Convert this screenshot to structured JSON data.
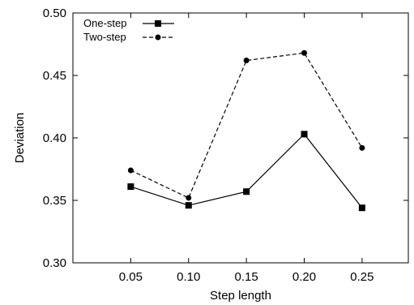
{
  "chart_data": {
    "type": "line",
    "title": "",
    "xlabel": "Step length",
    "ylabel": "Deviation",
    "x": [
      0.05,
      0.1,
      0.15,
      0.2,
      0.25
    ],
    "x_tick_labels": [
      "0.05",
      "0.10",
      "0.15",
      "0.20",
      "0.25"
    ],
    "y_tick_labels": [
      "0.30",
      "0.35",
      "0.40",
      "0.45",
      "0.50"
    ],
    "y_ticks": [
      0.3,
      0.35,
      0.4,
      0.45,
      0.5
    ],
    "xlim": [
      0.0,
      0.29
    ],
    "ylim": [
      0.3,
      0.5
    ],
    "grid": false,
    "legend_position": "top-left",
    "series": [
      {
        "name": "One-step",
        "values": [
          0.361,
          0.346,
          0.357,
          0.403,
          0.344
        ],
        "line_style": "solid",
        "marker": "square",
        "color": "#000000"
      },
      {
        "name": "Two-step",
        "values": [
          0.374,
          0.352,
          0.462,
          0.468,
          0.392
        ],
        "line_style": "dashed",
        "marker": "circle",
        "color": "#000000"
      }
    ]
  }
}
